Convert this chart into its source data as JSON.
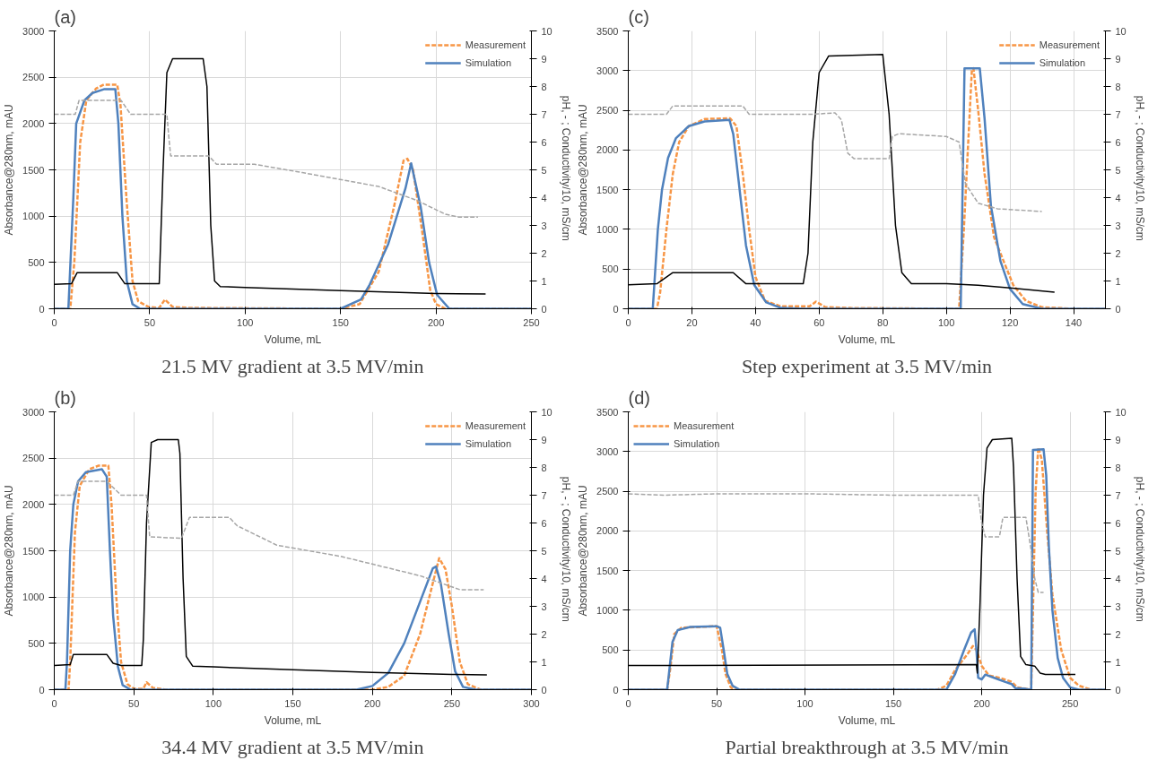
{
  "chart_data": [
    {
      "type": "line",
      "title": "(a)",
      "annotations": [
        "21.5 MV gradient at 3.5 MV/min"
      ],
      "xlabel": "Volume, mL",
      "ylabel": "Absorbance@280nm, mAU",
      "y2label": "pH, -  ; Conductivity/10, mS/cm",
      "xlim": [
        0,
        250
      ],
      "xticks": [
        0,
        50,
        100,
        150,
        200,
        250
      ],
      "ylim": [
        0,
        3000
      ],
      "yticks": [
        0,
        500,
        1000,
        1500,
        2000,
        2500,
        3000
      ],
      "y2lim": [
        0,
        10
      ],
      "y2ticks": [
        0,
        1,
        2,
        3,
        4,
        5,
        6,
        7,
        8,
        9,
        10
      ],
      "grid": true,
      "legend": "top right",
      "series": [
        {
          "name": "Measurement",
          "color": "#f79646",
          "line_style": "dashed",
          "x": [
            0,
            8.4,
            10.5,
            13.6,
            16.8,
            22,
            26,
            33,
            34.7,
            37.8,
            41,
            44,
            49.4,
            55,
            58,
            62,
            70,
            150,
            160,
            170,
            178,
            183,
            185,
            188,
            193,
            197,
            200,
            205,
            250
          ],
          "values": [
            0,
            0,
            500,
            1800,
            2250,
            2380,
            2420,
            2420,
            2200,
            1200,
            300,
            80,
            20,
            10,
            100,
            20,
            10,
            0,
            50,
            400,
            1100,
            1600,
            1620,
            1500,
            800,
            200,
            50,
            0,
            0
          ]
        },
        {
          "name": "Simulation",
          "color": "#4f81bd",
          "line_style": "solid",
          "x": [
            0,
            7.4,
            10,
            11.5,
            15.8,
            20,
            26,
            32,
            33.6,
            35.7,
            38,
            41,
            45,
            150,
            160.7,
            165,
            175,
            184,
            187,
            192,
            196.4,
            200.6,
            207,
            250
          ],
          "values": [
            0,
            0,
            1200,
            2000,
            2250,
            2330,
            2370,
            2370,
            2000,
            1000,
            300,
            50,
            0,
            0,
            100,
            250,
            700,
            1300,
            1570,
            1100,
            500,
            150,
            0,
            0
          ]
        },
        {
          "color": "#000000",
          "line_style": "solid",
          "axis": "y2",
          "x": [
            0,
            9,
            12,
            33,
            37,
            55,
            57,
            59,
            62,
            78,
            80,
            82,
            84,
            87,
            100,
            150,
            200,
            226
          ],
          "values": [
            0.88,
            0.9,
            1.3,
            1.3,
            0.9,
            0.9,
            5,
            8.5,
            9,
            9,
            8,
            3,
            1,
            0.8,
            0.77,
            0.65,
            0.55,
            0.53
          ]
        },
        {
          "color": "#a6a6a6",
          "line_style": "dashed",
          "axis": "y2",
          "x": [
            0,
            11,
            13,
            35,
            40,
            59,
            60,
            61,
            81,
            85,
            105,
            130,
            170,
            190,
            205,
            212,
            222
          ],
          "values": [
            7,
            7,
            7.5,
            7.5,
            7,
            7,
            6.2,
            5.5,
            5.5,
            5.2,
            5.2,
            4.9,
            4.4,
            3.9,
            3.4,
            3.3,
            3.3
          ]
        }
      ]
    },
    {
      "type": "line",
      "title": "(c)",
      "annotations": [
        "Step experiment at 3.5 MV/min"
      ],
      "xlabel": "Volume, mL",
      "ylabel": "Absorbance@280nm, mAU",
      "y2label": "pH, -  ; Conductivity/10, mS/cm",
      "xlim": [
        0,
        150
      ],
      "xticks": [
        0,
        20,
        40,
        60,
        80,
        100,
        120,
        140
      ],
      "ylim": [
        0,
        3500
      ],
      "yticks": [
        0,
        500,
        1000,
        1500,
        2000,
        2500,
        3000,
        3500
      ],
      "y2lim": [
        0,
        10
      ],
      "y2ticks": [
        0,
        1,
        2,
        3,
        4,
        5,
        6,
        7,
        8,
        9,
        10
      ],
      "grid": true,
      "legend": "top right",
      "series": [
        {
          "name": "Measurement",
          "color": "#f79646",
          "line_style": "dashed",
          "x": [
            0,
            9,
            10,
            12,
            14,
            16,
            19,
            24,
            32,
            34,
            36,
            38,
            40,
            43,
            48,
            57,
            59,
            62,
            70,
            104,
            105.5,
            108,
            108.5,
            110,
            112,
            115,
            118,
            121,
            125,
            130,
            140,
            150
          ],
          "values": [
            0,
            0,
            200,
            1000,
            1700,
            2100,
            2300,
            2390,
            2400,
            2300,
            1700,
            1000,
            400,
            100,
            30,
            30,
            90,
            20,
            10,
            0,
            1000,
            3000,
            3030,
            2500,
            1700,
            900,
            600,
            300,
            100,
            20,
            0,
            0
          ]
        },
        {
          "name": "Simulation",
          "color": "#4f81bd",
          "line_style": "solid",
          "x": [
            0,
            7.7,
            9.3,
            10.6,
            12.5,
            15,
            19,
            24,
            31.8,
            33,
            35,
            37,
            39.6,
            43.4,
            48,
            55,
            104.5,
            105.7,
            110.5,
            112,
            114,
            117,
            120,
            124,
            130,
            150
          ],
          "values": [
            0,
            0,
            1000,
            1500,
            1900,
            2150,
            2300,
            2360,
            2380,
            2200,
            1500,
            800,
            300,
            80,
            10,
            0,
            0,
            3030,
            3030,
            2400,
            1300,
            600,
            250,
            60,
            0,
            0
          ]
        },
        {
          "color": "#000000",
          "line_style": "solid",
          "axis": "y2",
          "x": [
            0,
            9,
            14,
            33,
            37,
            55,
            56.5,
            58,
            60,
            63,
            80,
            82,
            84,
            86,
            89,
            100,
            110,
            120,
            134
          ],
          "values": [
            0.86,
            0.9,
            1.3,
            1.3,
            0.9,
            0.9,
            2,
            6,
            8.5,
            9.1,
            9.15,
            7,
            3,
            1.3,
            0.9,
            0.9,
            0.85,
            0.75,
            0.6
          ]
        },
        {
          "color": "#a6a6a6",
          "line_style": "dashed",
          "axis": "y2",
          "x": [
            0,
            12,
            14,
            36,
            38,
            58,
            65,
            67,
            69,
            71,
            82,
            83,
            85,
            100,
            104,
            106,
            110,
            116,
            130
          ],
          "values": [
            7,
            7,
            7.3,
            7.3,
            7,
            7,
            7.05,
            6.8,
            5.6,
            5.4,
            5.4,
            6.2,
            6.3,
            6.2,
            6,
            4.5,
            3.8,
            3.6,
            3.5
          ]
        }
      ]
    },
    {
      "type": "line",
      "title": "(b)",
      "annotations": [
        "34.4 MV gradient at 3.5 MV/min"
      ],
      "xlabel": "Volume, mL",
      "ylabel": "Absorbance@280nm, mAU",
      "y2label": "pH, -  ; Conductivity/10, mS/cm",
      "xlim": [
        0,
        300
      ],
      "xticks": [
        0,
        50,
        100,
        150,
        200,
        250,
        300
      ],
      "ylim": [
        0,
        3000
      ],
      "yticks": [
        0,
        500,
        1000,
        1500,
        2000,
        2500,
        3000
      ],
      "y2lim": [
        0,
        10
      ],
      "y2ticks": [
        0,
        1,
        2,
        3,
        4,
        5,
        6,
        7,
        8,
        9,
        10
      ],
      "grid": true,
      "legend": "top right",
      "series": [
        {
          "name": "Measurement",
          "color": "#f79646",
          "line_style": "dashed",
          "x": [
            0,
            9,
            10,
            13,
            16,
            22,
            28,
            34,
            36,
            39,
            42,
            46,
            50,
            56,
            58,
            62,
            70,
            200,
            210,
            220,
            230,
            238,
            242,
            246,
            250,
            255,
            260,
            268,
            300
          ],
          "values": [
            0,
            0,
            300,
            1700,
            2200,
            2380,
            2420,
            2420,
            2000,
            1000,
            300,
            60,
            10,
            10,
            80,
            20,
            0,
            0,
            30,
            150,
            600,
            1150,
            1420,
            1300,
            900,
            300,
            60,
            0,
            0
          ]
        },
        {
          "name": "Simulation",
          "color": "#4f81bd",
          "line_style": "solid",
          "x": [
            0,
            7,
            8,
            10,
            12,
            15,
            20,
            30,
            33,
            35,
            37,
            40,
            43,
            48,
            190,
            200,
            210,
            220,
            230,
            238,
            240,
            243,
            248,
            252,
            257,
            265,
            300
          ],
          "values": [
            0,
            0,
            300,
            1500,
            2000,
            2250,
            2350,
            2380,
            2300,
            1500,
            800,
            250,
            50,
            0,
            0,
            40,
            180,
            500,
            950,
            1310,
            1330,
            1150,
            600,
            200,
            30,
            0,
            0
          ]
        },
        {
          "color": "#000000",
          "line_style": "solid",
          "axis": "y2",
          "x": [
            0,
            10,
            12,
            33,
            37,
            42,
            55,
            56,
            58,
            61,
            65,
            78,
            79,
            81,
            83,
            87,
            100,
            150,
            200,
            250,
            272
          ],
          "values": [
            0.87,
            0.9,
            1.27,
            1.27,
            0.95,
            0.87,
            0.87,
            1.8,
            6,
            8.9,
            9,
            9,
            8.5,
            4,
            1.2,
            0.85,
            0.82,
            0.72,
            0.62,
            0.55,
            0.53
          ]
        },
        {
          "color": "#a6a6a6",
          "line_style": "dashed",
          "axis": "y2",
          "x": [
            0,
            12,
            15,
            33,
            42,
            58,
            60,
            80,
            85,
            110,
            115,
            140,
            180,
            230,
            255,
            270
          ],
          "values": [
            7,
            7,
            7.5,
            7.5,
            7,
            7,
            5.5,
            5.45,
            6.2,
            6.2,
            5.9,
            5.2,
            4.8,
            4.1,
            3.6,
            3.6
          ]
        }
      ]
    },
    {
      "type": "line",
      "title": "(d)",
      "annotations": [
        "Partial breakthrough at 3.5 MV/min"
      ],
      "xlabel": "Volume, mL",
      "ylabel": "Absorbance@280nm, mAU",
      "y2label": "pH, -  ; Conductivity/10, mS/cm",
      "xlim": [
        0,
        270
      ],
      "xticks": [
        0,
        50,
        100,
        150,
        200,
        250
      ],
      "ylim": [
        0,
        3500
      ],
      "yticks": [
        0,
        500,
        1000,
        1500,
        2000,
        2500,
        3000,
        3500
      ],
      "y2lim": [
        0,
        10
      ],
      "y2ticks": [
        0,
        1,
        2,
        3,
        4,
        5,
        6,
        7,
        8,
        9,
        10
      ],
      "grid": true,
      "legend": "top left",
      "series": [
        {
          "name": "Measurement",
          "color": "#f79646",
          "line_style": "dashed",
          "x": [
            0,
            22,
            24,
            26,
            30,
            50,
            53,
            55,
            58,
            60,
            175,
            180,
            185,
            192,
            195,
            197,
            200,
            204,
            210,
            217,
            220,
            228,
            230.5,
            232,
            234,
            237,
            240,
            245,
            250,
            255,
            262,
            270
          ],
          "values": [
            0,
            0,
            300,
            700,
            780,
            800,
            500,
            200,
            30,
            0,
            0,
            50,
            250,
            450,
            550,
            500,
            300,
            180,
            150,
            100,
            30,
            0,
            2500,
            3050,
            2900,
            2000,
            1200,
            500,
            150,
            50,
            0,
            0
          ]
        },
        {
          "name": "Simulation",
          "color": "#4f81bd",
          "line_style": "solid",
          "x": [
            0,
            22,
            23,
            25,
            28,
            35,
            50,
            52,
            54,
            56,
            59,
            63,
            180,
            185,
            190,
            194,
            196,
            197,
            198,
            200,
            202,
            207,
            213,
            217,
            219,
            225,
            228,
            229,
            235,
            236.5,
            238,
            240,
            243,
            246,
            250,
            255,
            270
          ],
          "values": [
            0,
            0,
            200,
            600,
            750,
            790,
            800,
            780,
            500,
            200,
            50,
            0,
            0,
            200,
            500,
            720,
            760,
            500,
            150,
            130,
            190,
            150,
            100,
            70,
            20,
            10,
            0,
            3020,
            3030,
            2700,
            1800,
            1000,
            400,
            150,
            30,
            0,
            0
          ]
        },
        {
          "color": "#000000",
          "line_style": "solid",
          "axis": "y2",
          "x": [
            0,
            197,
            197.5,
            199,
            201,
            203,
            206,
            217,
            218,
            220,
            222,
            225,
            230,
            233,
            236,
            253
          ],
          "values": [
            0.87,
            0.9,
            0.6,
            3,
            7,
            8.7,
            9,
            9.05,
            8,
            4,
            1.2,
            0.9,
            0.85,
            0.6,
            0.55,
            0.55
          ]
        },
        {
          "color": "#a6a6a6",
          "line_style": "dashed",
          "axis": "y2",
          "x": [
            0,
            20,
            50,
            100,
            150,
            198,
            200,
            202,
            210,
            212,
            217,
            225,
            228,
            230,
            232,
            235
          ],
          "values": [
            7.05,
            7,
            7.05,
            7.05,
            7,
            7,
            6,
            5.5,
            5.5,
            6.2,
            6.2,
            6.2,
            5,
            4,
            3.5,
            3.5
          ]
        }
      ]
    }
  ]
}
